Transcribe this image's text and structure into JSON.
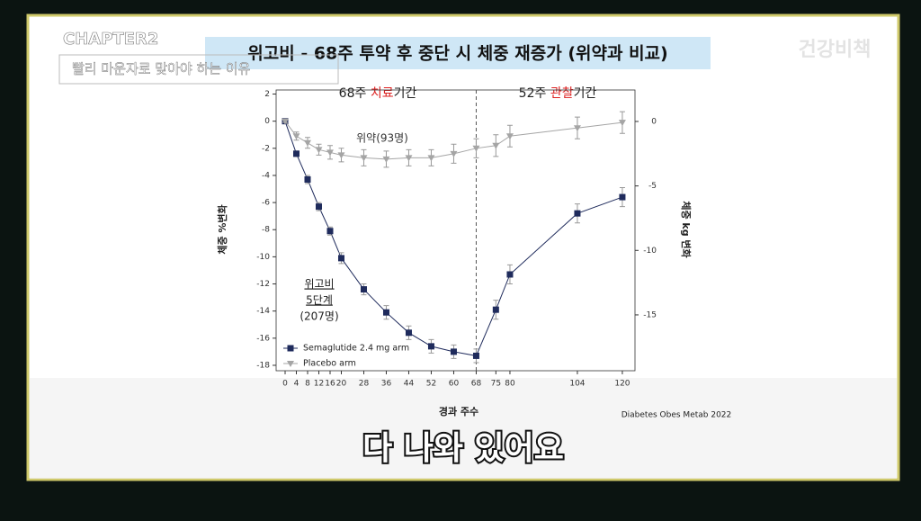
{
  "overlay": {
    "chapter": "CHAPTER2",
    "chapter_subtitle": "빨리 마운자로 맞아야 하는 이유",
    "channel": "건강비책",
    "caption": "다 나와 있어요"
  },
  "chart_data": {
    "type": "line",
    "title": "위고비 - 68주 투약 후 중단 시 체중 재증가 (위약과 비교)",
    "treatment_label": [
      "68주 ",
      "치료",
      "기간"
    ],
    "observation_label": [
      "52주 ",
      "관찰",
      "기간"
    ],
    "placebo_annotation": "위약(93명)",
    "semaglutide_annotation": [
      "위고비",
      "5단계",
      "(207명)"
    ],
    "xlabel": "경과 주수",
    "ylabel": "체중 %변화",
    "y2label": "체중 kg 변화",
    "source": "Diabetes Obes Metab 2022",
    "x": [
      0,
      4,
      8,
      12,
      16,
      20,
      28,
      36,
      44,
      52,
      60,
      68,
      75,
      80,
      104,
      120
    ],
    "xticks": [
      0,
      4,
      8,
      12,
      16,
      20,
      28,
      36,
      44,
      52,
      60,
      68,
      75,
      80,
      104,
      120
    ],
    "xlim": [
      -3.2,
      124.5
    ],
    "ylim": [
      -18.4,
      2.3
    ],
    "yticks": [
      2,
      0,
      -2,
      -4,
      -6,
      -8,
      -10,
      -12,
      -14,
      -16,
      -18
    ],
    "y2lim": [
      -19.33,
      2.44
    ],
    "y2ticks": [
      0,
      -5,
      -10,
      -15
    ],
    "vline": 68,
    "legend": "lower left",
    "series": [
      {
        "name": "Semaglutide 2.4 mg arm",
        "color": "#1f2b5c",
        "marker": "square",
        "values": [
          0,
          -2.4,
          -4.3,
          -6.3,
          -8.1,
          -10.1,
          -12.4,
          -14.1,
          -15.6,
          -16.6,
          -17.0,
          -17.3,
          -13.9,
          -11.3,
          -6.8,
          -5.6
        ],
        "errors": [
          0.1,
          0.2,
          0.3,
          0.3,
          0.3,
          0.4,
          0.4,
          0.5,
          0.5,
          0.5,
          0.5,
          0.5,
          0.7,
          0.7,
          0.7,
          0.7
        ]
      },
      {
        "name": "Placebo arm",
        "color": "#a5a5a5",
        "marker": "triangle",
        "values": [
          0,
          -1.1,
          -1.6,
          -2.1,
          -2.3,
          -2.5,
          -2.7,
          -2.8,
          -2.7,
          -2.7,
          -2.4,
          -2.0,
          -1.8,
          -1.1,
          -0.5,
          -0.1
        ],
        "errors": [
          0.1,
          0.3,
          0.4,
          0.4,
          0.5,
          0.5,
          0.6,
          0.6,
          0.6,
          0.6,
          0.7,
          0.7,
          0.8,
          0.8,
          0.8,
          0.8
        ]
      }
    ]
  }
}
